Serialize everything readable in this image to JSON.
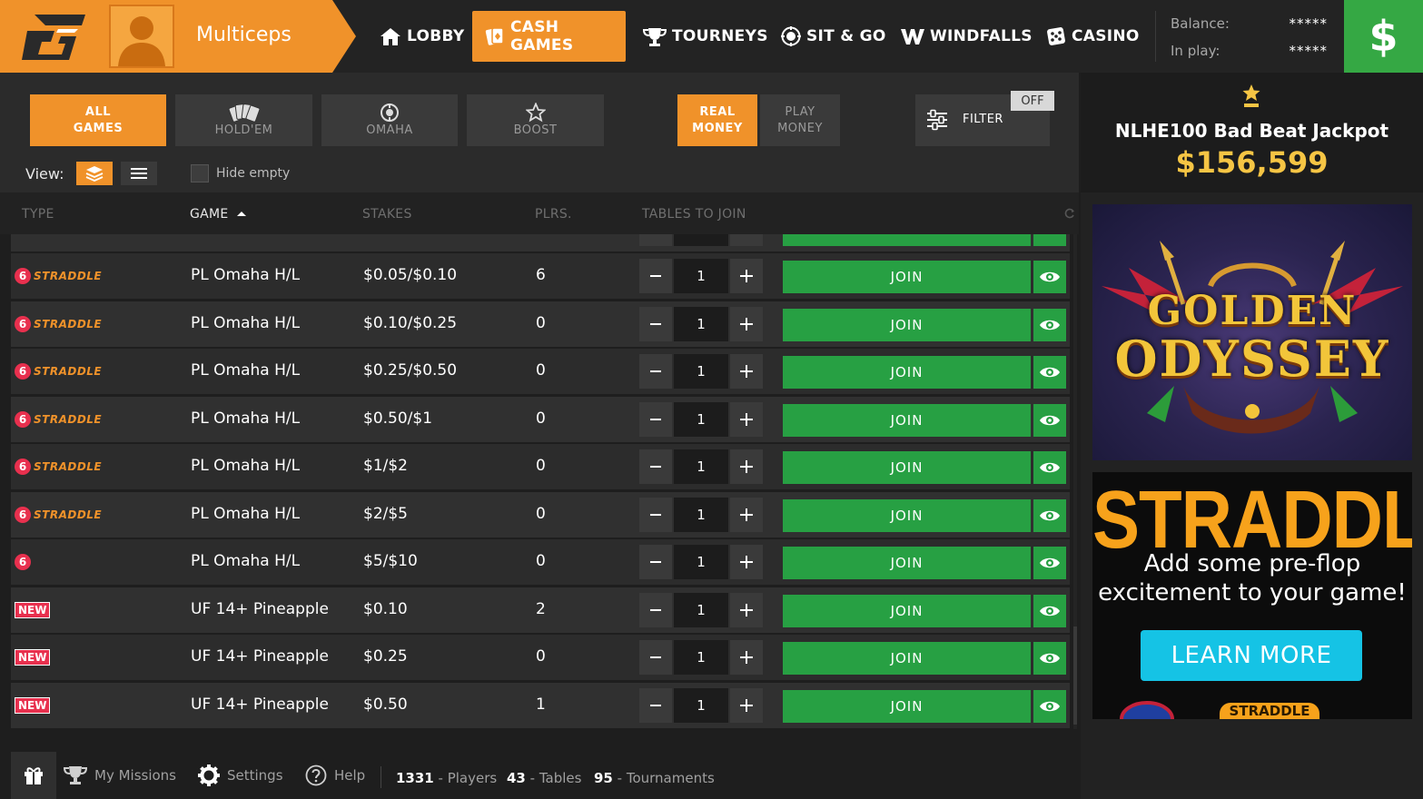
{
  "header": {
    "username": "Multiceps",
    "nav": [
      {
        "label": "LOBBY",
        "icon": "home-icon"
      },
      {
        "label": "CASH GAMES",
        "icon": "cards-icon",
        "active": true
      },
      {
        "label": "TOURNEYS",
        "icon": "trophy-icon"
      },
      {
        "label": "SIT & GO",
        "icon": "chip-icon"
      },
      {
        "label": "WINDFALLS",
        "icon": "w-icon"
      },
      {
        "label": "CASINO",
        "icon": "dice-icon"
      }
    ],
    "balance_label": "Balance:",
    "balance_value": "*****",
    "inplay_label": "In play:",
    "inplay_value": "*****",
    "cashier_symbol": "$"
  },
  "filters": {
    "game_types": [
      {
        "line1": "ALL",
        "line2": "GAMES",
        "active": true
      },
      {
        "label": "HOLD'EM",
        "icon": "cards-fan-icon"
      },
      {
        "label": "OMAHA",
        "icon": "omaha-icon"
      },
      {
        "label": "BOOST",
        "icon": "star-icon"
      }
    ],
    "money_types": [
      {
        "line1": "REAL",
        "line2": "MONEY",
        "active": true
      },
      {
        "line1": "PLAY",
        "line2": "MONEY"
      }
    ],
    "filter_label": "FILTER",
    "filter_state": "OFF",
    "view_label": "View:",
    "hide_empty_label": "Hide empty"
  },
  "table": {
    "columns": [
      "TYPE",
      "GAME",
      "STAKES",
      "PLRS.",
      "TABLES TO JOIN"
    ],
    "sorted_column": "GAME",
    "join_label": "JOIN",
    "rows": [
      {
        "type": "straddle",
        "game": "PL Omaha H/L",
        "stakes": "$0.05/$0.10",
        "players": "6",
        "qty": "1"
      },
      {
        "type": "straddle",
        "game": "PL Omaha H/L",
        "stakes": "$0.10/$0.25",
        "players": "0",
        "qty": "1"
      },
      {
        "type": "straddle",
        "game": "PL Omaha H/L",
        "stakes": "$0.25/$0.50",
        "players": "0",
        "qty": "1"
      },
      {
        "type": "straddle",
        "game": "PL Omaha H/L",
        "stakes": "$0.50/$1",
        "players": "0",
        "qty": "1"
      },
      {
        "type": "straddle",
        "game": "PL Omaha H/L",
        "stakes": "$1/$2",
        "players": "0",
        "qty": "1"
      },
      {
        "type": "straddle",
        "game": "PL Omaha H/L",
        "stakes": "$2/$5",
        "players": "0",
        "qty": "1"
      },
      {
        "type": "six",
        "game": "PL Omaha H/L",
        "stakes": "$5/$10",
        "players": "0",
        "qty": "1"
      },
      {
        "type": "new",
        "game": "UF 14+ Pineapple",
        "stakes": "$0.10",
        "players": "2",
        "qty": "1"
      },
      {
        "type": "new",
        "game": "UF 14+ Pineapple",
        "stakes": "$0.25",
        "players": "0",
        "qty": "1"
      },
      {
        "type": "new",
        "game": "UF 14+ Pineapple",
        "stakes": "$0.50",
        "players": "1",
        "qty": "1"
      }
    ],
    "badges": {
      "six": "6",
      "straddle": "STRADDLE",
      "new": "NEW"
    }
  },
  "sidebar": {
    "jackpot_title": "NLHE100 Bad Beat Jackpot",
    "jackpot_amount": "$156,599",
    "banner1_line1": "GOLDEN",
    "banner1_line2": "ODYSSEY",
    "banner2_title": "STRADDLE",
    "banner2_line1": "Add some pre-flop",
    "banner2_line2": "excitement to your game!",
    "banner2_button": "LEARN MORE",
    "banner2_footer": "STRADDLE"
  },
  "footer": {
    "missions_label": "My Missions",
    "settings_label": "Settings",
    "help_label": "Help",
    "players_count": "1331",
    "players_label": "- Players",
    "tables_count": "43",
    "tables_label": "- Tables",
    "tournaments_count": "95",
    "tournaments_label": "- Tournaments"
  },
  "colors": {
    "accent": "#f0922a",
    "join_green": "#27a043",
    "cashier_green": "#35a844",
    "jackpot_gold": "#f6c544",
    "badge_red": "#e8304e"
  }
}
